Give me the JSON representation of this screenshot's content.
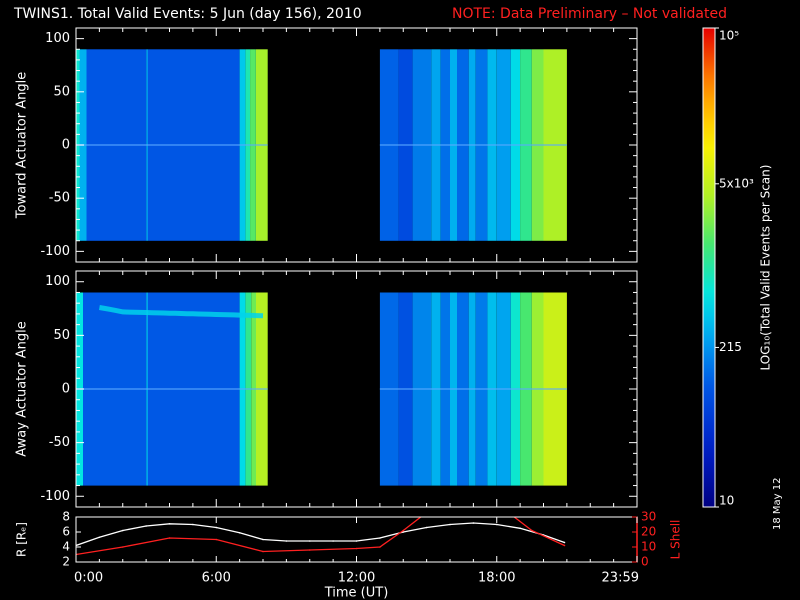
{
  "header": {
    "title": "TWINS1. Total Valid Events:  5 Jun (day 156), 2010",
    "note": "NOTE: Data Preliminary – Not validated"
  },
  "footer": {
    "date_stamp": "18 May 12"
  },
  "colors": {
    "background": "#000000",
    "axis": "#ffffff",
    "note": "#ff2020",
    "r_line": "#ffffff",
    "l_shell_line": "#ff2020"
  },
  "chart_data": [
    {
      "type": "heatmap",
      "name": "toward-panel",
      "ylabel": "Toward Actuator Angle",
      "ylim": [
        -110,
        110
      ],
      "yticks": [
        100,
        50,
        0,
        -50,
        -100
      ],
      "xlim": [
        0,
        24
      ],
      "xticks_hours": [
        0,
        6,
        12,
        18,
        24
      ],
      "data_angle_range": [
        -90,
        90
      ],
      "data_segments": [
        {
          "x_start": 0,
          "x_end": 8.2,
          "bands": [
            {
              "from": 0.0,
              "to": 0.15,
              "value": 700
            },
            {
              "from": 0.15,
              "to": 0.45,
              "value": 300
            },
            {
              "from": 0.45,
              "to": 3.0,
              "value": 100
            },
            {
              "from": 3.0,
              "to": 3.08,
              "value": 220
            },
            {
              "from": 3.08,
              "to": 7.0,
              "value": 100
            },
            {
              "from": 7.0,
              "to": 7.25,
              "value": 400
            },
            {
              "from": 7.25,
              "to": 7.45,
              "value": 900
            },
            {
              "from": 7.45,
              "to": 7.7,
              "value": 1800
            },
            {
              "from": 7.7,
              "to": 8.2,
              "value": 3500
            }
          ]
        },
        {
          "x_start": 13.0,
          "x_end": 21.0,
          "bands": [
            {
              "from": 13.0,
              "to": 13.8,
              "value": 120
            },
            {
              "from": 13.8,
              "to": 14.4,
              "value": 80
            },
            {
              "from": 14.4,
              "to": 15.2,
              "value": 160
            },
            {
              "from": 15.2,
              "to": 15.6,
              "value": 260
            },
            {
              "from": 15.6,
              "to": 16.0,
              "value": 140
            },
            {
              "from": 16.0,
              "to": 16.3,
              "value": 300
            },
            {
              "from": 16.3,
              "to": 16.8,
              "value": 130
            },
            {
              "from": 16.8,
              "to": 17.1,
              "value": 280
            },
            {
              "from": 17.1,
              "to": 17.6,
              "value": 150
            },
            {
              "from": 17.6,
              "to": 18.0,
              "value": 330
            },
            {
              "from": 18.0,
              "to": 18.6,
              "value": 240
            },
            {
              "from": 18.6,
              "to": 19.0,
              "value": 500
            },
            {
              "from": 19.0,
              "to": 19.5,
              "value": 1200
            },
            {
              "from": 19.5,
              "to": 20.0,
              "value": 2500
            },
            {
              "from": 20.0,
              "to": 21.0,
              "value": 3800
            }
          ]
        }
      ]
    },
    {
      "type": "heatmap",
      "name": "away-panel",
      "ylabel": "Away Actuator Angle",
      "ylim": [
        -110,
        110
      ],
      "yticks": [
        100,
        50,
        0,
        -50,
        -100
      ],
      "xlim": [
        0,
        24
      ],
      "xticks_hours": [
        0,
        6,
        12,
        18,
        24
      ],
      "data_angle_range": [
        -90,
        90
      ],
      "annotation": "enhanced band near +70 deg from 1.5 to 8 UT",
      "data_segments": [
        {
          "x_start": 0,
          "x_end": 8.2,
          "bands": [
            {
              "from": 0.0,
              "to": 0.3,
              "value": 600
            },
            {
              "from": 0.3,
              "to": 3.0,
              "value": 110
            },
            {
              "from": 3.0,
              "to": 3.08,
              "value": 250
            },
            {
              "from": 3.08,
              "to": 7.0,
              "value": 105
            },
            {
              "from": 7.0,
              "to": 7.25,
              "value": 500
            },
            {
              "from": 7.25,
              "to": 7.5,
              "value": 1200
            },
            {
              "from": 7.5,
              "to": 7.7,
              "value": 2200
            },
            {
              "from": 7.7,
              "to": 8.2,
              "value": 4200
            }
          ]
        },
        {
          "x_start": 13.0,
          "x_end": 21.0,
          "bands": [
            {
              "from": 13.0,
              "to": 13.8,
              "value": 130
            },
            {
              "from": 13.8,
              "to": 14.4,
              "value": 90
            },
            {
              "from": 14.4,
              "to": 15.2,
              "value": 180
            },
            {
              "from": 15.2,
              "to": 15.6,
              "value": 300
            },
            {
              "from": 15.6,
              "to": 16.0,
              "value": 150
            },
            {
              "from": 16.0,
              "to": 16.3,
              "value": 320
            },
            {
              "from": 16.3,
              "to": 16.8,
              "value": 140
            },
            {
              "from": 16.8,
              "to": 17.1,
              "value": 300
            },
            {
              "from": 17.1,
              "to": 17.6,
              "value": 160
            },
            {
              "from": 17.6,
              "to": 18.0,
              "value": 350
            },
            {
              "from": 18.0,
              "to": 18.6,
              "value": 260
            },
            {
              "from": 18.6,
              "to": 19.0,
              "value": 700
            },
            {
              "from": 19.0,
              "to": 19.5,
              "value": 1600
            },
            {
              "from": 19.5,
              "to": 20.0,
              "value": 3200
            },
            {
              "from": 20.0,
              "to": 21.0,
              "value": 5500
            }
          ]
        }
      ]
    },
    {
      "type": "line",
      "name": "orbit-panel",
      "xlabel": "Time (UT)",
      "xlim": [
        0,
        24
      ],
      "xticks": [
        0,
        6,
        12,
        18,
        24
      ],
      "xtick_labels": [
        "0:00",
        "6:00",
        "12:00",
        "18:00",
        "23:59"
      ],
      "left_axis": {
        "label": "R [Rₑ]",
        "ylim": [
          2,
          8
        ],
        "yticks": [
          2,
          4,
          6,
          8
        ]
      },
      "right_axis": {
        "label": "L Shell",
        "ylim": [
          0,
          30
        ],
        "yticks": [
          0,
          10,
          20,
          30
        ]
      },
      "series": [
        {
          "axis": "left",
          "x": [
            0,
            1,
            2,
            3,
            4,
            5,
            6,
            7,
            8,
            9,
            10,
            11,
            12,
            13,
            14,
            15,
            16,
            17,
            18,
            19,
            20,
            20.9
          ],
          "values": [
            4.2,
            5.3,
            6.2,
            6.8,
            7.1,
            7.0,
            6.6,
            5.9,
            5.0,
            4.8,
            4.8,
            4.8,
            4.8,
            5.2,
            6.0,
            6.6,
            7.0,
            7.2,
            7.0,
            6.5,
            5.6,
            4.6
          ]
        },
        {
          "axis": "right",
          "x": [
            0,
            2,
            4,
            6,
            8,
            10,
            12,
            13,
            14,
            15,
            18.5,
            19.5,
            20.9
          ],
          "values": [
            5,
            10,
            16,
            15,
            7,
            8,
            9,
            10,
            21,
            33,
            33,
            21,
            11
          ]
        }
      ]
    },
    {
      "type": "colorbar",
      "name": "colorbar",
      "label": "LOG₁₀(Total Valid Events per Scan)",
      "range": [
        10,
        100000
      ],
      "scale": "log",
      "tick_labels": [
        {
          "value": 10,
          "text": "10"
        },
        {
          "value": 215,
          "text": "215"
        },
        {
          "value": 5000,
          "text": "5x10³"
        },
        {
          "value": 100000,
          "text": "10⁵"
        }
      ]
    }
  ]
}
